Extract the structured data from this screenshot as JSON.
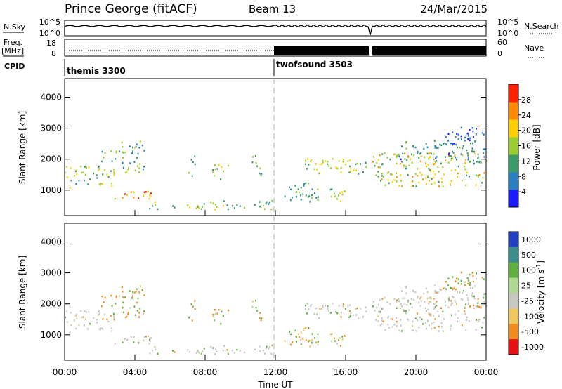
{
  "header": {
    "site": "Prince George (fitACF)",
    "beam": "Beam 13",
    "date": "24/Mar/2015"
  },
  "nsky_panel": {
    "left_label": "N.Sky",
    "left_ticks": [
      "10^5",
      "10^0"
    ],
    "right_ticks": [
      "10^5",
      "10^0"
    ],
    "right_label": "N.Search"
  },
  "freq_panel": {
    "left_label_1": "Freq.",
    "left_label_2": "[MHz]",
    "left_ticks": [
      "18",
      "8"
    ],
    "right_ticks": [
      "60",
      "0"
    ],
    "right_label": "Nave"
  },
  "cpid": {
    "label": "CPID",
    "modes": [
      {
        "name": "themis 3300",
        "start_hour": 0
      },
      {
        "name": "twofsound 3503",
        "start_hour": 12
      }
    ]
  },
  "colors": {
    "velocity_ground_scatter": "#c0c0b8"
  },
  "chart_data": [
    {
      "type": "heatmap",
      "name": "Power",
      "ylabel": "Slant Range [km]",
      "y_ticks": [
        "1000",
        "2000",
        "3000",
        "4000"
      ],
      "ylim": [
        180,
        4600
      ],
      "xlim_hours": [
        0,
        24
      ],
      "colorbar_label": "Power [dB]",
      "colorbar_ticks": [
        "4",
        "8",
        "12",
        "16",
        "20",
        "24",
        "28"
      ],
      "colorbar_range": [
        0,
        32
      ],
      "colorscale": [
        "#1a1aff",
        "#2a7fbf",
        "#3c9a6a",
        "#9acd32",
        "#ffd000",
        "#ff8c00",
        "#ff2000"
      ]
    },
    {
      "type": "heatmap",
      "name": "Velocity",
      "ylabel": "Slant Range [km]",
      "y_ticks": [
        "1000",
        "2000",
        "3000",
        "4000"
      ],
      "ylim": [
        180,
        4600
      ],
      "xlim_hours": [
        0,
        24
      ],
      "colorbar_label": "Velocity [m s^-1]",
      "colorbar_levels": [
        "1000",
        "500",
        "100",
        "25",
        "-25",
        "-100",
        "-500",
        "-1000"
      ],
      "colorbar_colors": [
        "#2040c0",
        "#3c8c8c",
        "#60b040",
        "#b0d890",
        "#c8c8c0",
        "#f0c860",
        "#f08c20",
        "#e81010"
      ],
      "x_ticks": [
        "00:00",
        "04:00",
        "08:00",
        "12:00",
        "16:00",
        "20:00",
        "00:00"
      ],
      "xlabel": "Time UT"
    }
  ]
}
